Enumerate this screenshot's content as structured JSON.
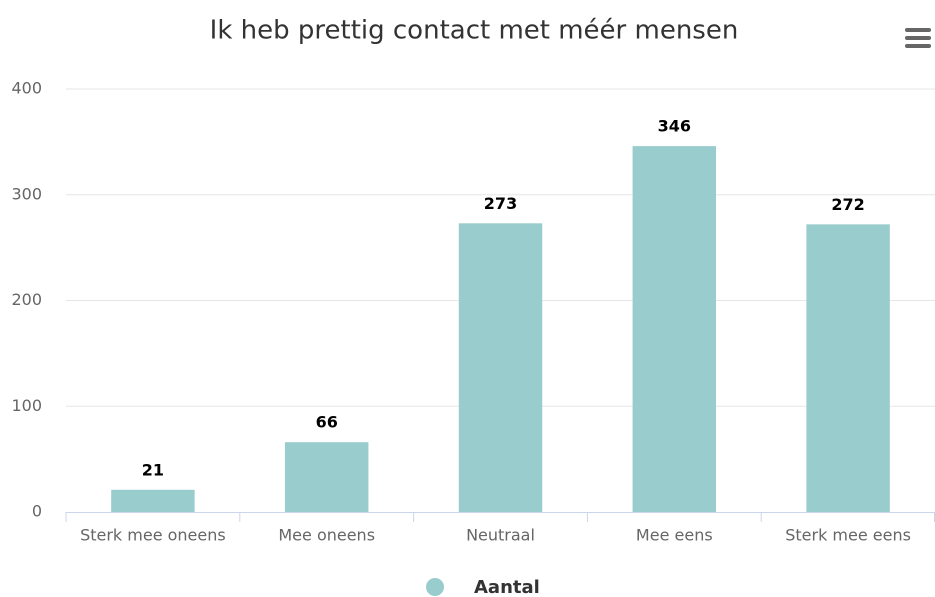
{
  "chart_data": {
    "type": "bar",
    "title": "Ik heb prettig contact met méér mensen",
    "categories": [
      "Sterk mee oneens",
      "Mee oneens",
      "Neutraal",
      "Mee eens",
      "Sterk mee eens"
    ],
    "series": [
      {
        "name": "Aantal",
        "color": "#99cccc",
        "values": [
          21,
          66,
          273,
          346,
          272
        ]
      }
    ],
    "ylim": [
      0,
      400
    ],
    "yticks": [
      0,
      100,
      200,
      300,
      400
    ],
    "grid": true,
    "legend": "bottom"
  }
}
